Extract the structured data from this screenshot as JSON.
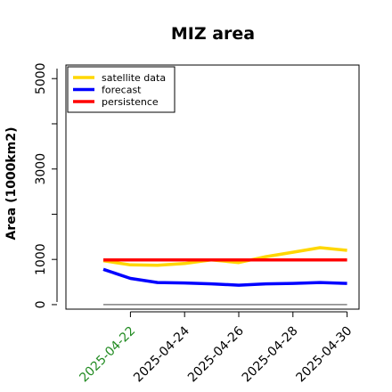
{
  "chart_data": {
    "type": "line",
    "title": "MIZ area",
    "xlabel": "",
    "ylabel": "Area (1000km2)",
    "x": [
      "2025-04-21",
      "2025-04-22",
      "2025-04-23",
      "2025-04-24",
      "2025-04-25",
      "2025-04-26",
      "2025-04-27",
      "2025-04-28",
      "2025-04-29",
      "2025-04-30"
    ],
    "xtick_labels": [
      "2025-04-22",
      "2025-04-24",
      "2025-04-26",
      "2025-04-28",
      "2025-04-30"
    ],
    "xtick_colors": [
      "#228b22",
      "#000000",
      "#000000",
      "#000000",
      "#000000"
    ],
    "ylim": [
      -100,
      5300
    ],
    "yticks": [
      0,
      1000,
      3000,
      5000
    ],
    "grid": false,
    "legend_position": "top-left",
    "series": [
      {
        "name": "satellite data",
        "color": "#ffd700",
        "values": [
          970,
          880,
          870,
          910,
          990,
          930,
          1060,
          1160,
          1260,
          1200
        ]
      },
      {
        "name": "forecast",
        "color": "#0000ff",
        "values": [
          780,
          580,
          490,
          480,
          460,
          430,
          460,
          470,
          490,
          470
        ]
      },
      {
        "name": "persistence",
        "color": "#ff0000",
        "values": [
          990,
          990,
          990,
          990,
          990,
          990,
          990,
          990,
          990,
          990
        ]
      }
    ],
    "reference_line": {
      "value": 0,
      "color": "#808080"
    }
  }
}
